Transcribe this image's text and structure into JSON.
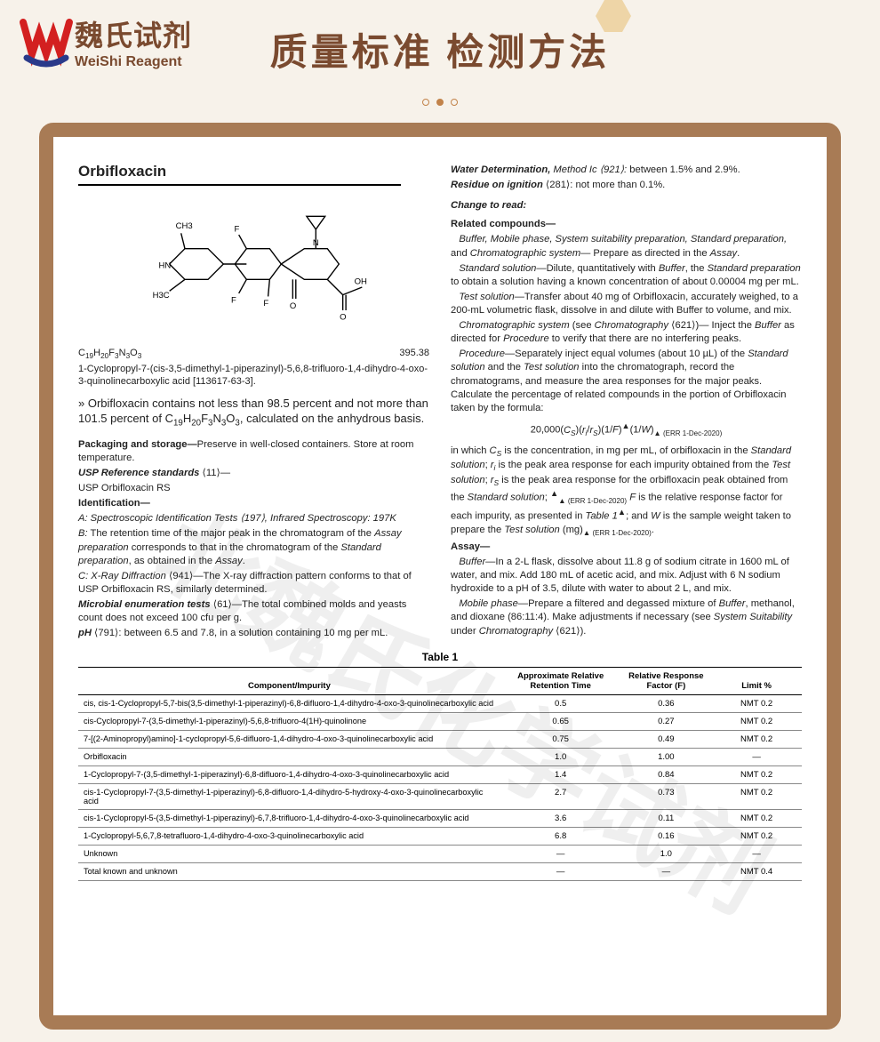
{
  "brand": {
    "cn": "魏氏试剂",
    "en": "WeiShi Reagent"
  },
  "page_title": "质量标准 检测方法",
  "watermark": "北魏氏化学试剂",
  "monograph": {
    "title": "Orbifloxacin",
    "formula": "20,000(Cs)(ri/rs)(1/F)▲(1/W)▲ (ERR 1-Dec-2020)",
    "mw": "395.38",
    "chem_name": "1-Cyclopropyl-7-(cis-3,5-dimethyl-1-piperazinyl)-5,6,8-trifluoro-1,4-dihydro-4-oxo-3-quinolinecarboxylic acid [113617-63-3].",
    "structure_labels": {
      "ch3_top": "CH3",
      "hn": "HN",
      "h3c": "H3C",
      "f1": "F",
      "f2": "F",
      "f3": "F",
      "n": "N",
      "o1": "O",
      "o2": "O",
      "oh": "OH"
    },
    "description": "» Orbifloxacin contains not less than 98.5 percent and not more than 101.5 percent of C19H20F3N3O3, calculated on the anhydrous basis.",
    "packaging_head": "Packaging and storage—",
    "packaging": "Preserve in well-closed containers. Store at room temperature.",
    "usp_ref_head": "USP Reference standards",
    "usp_ref_cross": "⟨11⟩—",
    "usp_ref_body": "USP Orbifloxacin RS",
    "identification_head": "Identification—",
    "id_A": "A:  Spectroscopic Identification Tests ⟨197⟩, Infrared Spectroscopy: 197K",
    "id_B": "B:  The retention time of the major peak in the chromatogram of the Assay preparation corresponds to that in the chromatogram of the Standard preparation, as obtained in the Assay.",
    "id_C": "C:  X-Ray Diffraction ⟨941⟩—The X-ray diffraction pattern conforms to that of USP Orbifloxacin RS, similarly determined.",
    "microbial_head": "Microbial enumeration tests",
    "microbial_cross": "⟨61⟩—",
    "microbial": "The total combined molds and yeasts count does not exceed 100 cfu per g.",
    "ph_head": "pH",
    "ph_cross": "⟨791⟩:",
    "ph": " between 6.5 and 7.8, in a solution containing 10 mg per mL.",
    "water_head": "Water Determination,",
    "water_method": " Method Ic ⟨921⟩:",
    "water": " between 1.5% and 2.9%.",
    "roi_head": "Residue on ignition",
    "roi_cross": " ⟨281⟩:",
    "roi": " not more than 0.1%.",
    "change": "Change to read:",
    "related_head": "Related compounds—",
    "rc_p1": "Buffer, Mobile phase, System suitability preparation, Standard preparation, and Chromatographic system— Prepare as directed in the Assay.",
    "rc_p2_head": "Standard solution—",
    "rc_p2": "Dilute, quantitatively with Buffer, the Standard preparation to obtain a solution having a known concentration of about 0.00004 mg per mL.",
    "rc_p3_head": "Test solution—",
    "rc_p3": "Transfer about 40 mg of Orbifloxacin, accurately weighed, to a 200-mL volumetric flask, dissolve in and dilute with Buffer to volume, and mix.",
    "rc_p4_head": "Chromatographic system",
    "rc_p4": " (see Chromatography ⟨621⟩)— Inject the Buffer as directed for Procedure to verify that there are no interfering peaks.",
    "rc_p5_head": "Procedure—",
    "rc_p5": "Separately inject equal volumes (about 10 µL) of the Standard solution and the Test solution into the chromatograph, record the chromatograms, and measure the area responses for the major peaks. Calculate the percentage of related compounds in the portion of Orbifloxacin taken by the formula:",
    "rc_p6": "in which Cs is the concentration, in mg per mL, of orbifloxacin in the Standard solution;  ri is the peak area response for each impurity obtained from the Test solution;  rs is the peak area response for the orbifloxacin peak obtained from the Standard solution; ▲▲ (ERR 1-Dec-2020) F is the relative response factor for each impurity, as presented in Table 1▲; and W is the sample weight taken to prepare the Test solution (mg)▲ (ERR 1-Dec-2020).",
    "assay_head": "Assay—",
    "assay_buffer_head": "Buffer—",
    "assay_buffer": "In a 2-L flask, dissolve about 11.8 g of sodium citrate in 1600 mL of water, and mix. Add 180 mL of acetic acid, and mix. Adjust with 6 N sodium hydroxide to a pH of 3.5, dilute with water to about 2 L, and mix.",
    "assay_mp_head": "Mobile phase—",
    "assay_mp": "Prepare a filtered and degassed mixture of Buffer, methanol, and dioxane (86:11:4). Make adjustments if necessary (see System Suitability under Chromatography ⟨621⟩)."
  },
  "table": {
    "caption": "Table 1",
    "headers": [
      "Component/Impurity",
      "Approximate Relative Retention Time",
      "Relative Response Factor (F)",
      "Limit %"
    ],
    "rows": [
      [
        "cis, cis-1-Cyclopropyl-5,7-bis(3,5-dimethyl-1-piperazinyl)-6,8-difluoro-1,4-dihydro-4-oxo-3-quinolinecarboxylic acid",
        "0.5",
        "0.36",
        "NMT 0.2"
      ],
      [
        "cis-Cyclopropyl-7-(3,5-dimethyl-1-piperazinyl)-5,6,8-trifluoro-4(1H)-quinolinone",
        "0.65",
        "0.27",
        "NMT 0.2"
      ],
      [
        "7-[(2-Aminopropyl)amino]-1-cyclopropyl-5,6-difluoro-1,4-dihydro-4-oxo-3-quinolinecarboxylic acid",
        "0.75",
        "0.49",
        "NMT 0.2"
      ],
      [
        "Orbifloxacin",
        "1.0",
        "1.00",
        "—"
      ],
      [
        "1-Cyclopropyl-7-(3,5-dimethyl-1-piperazinyl)-6,8-difluoro-1,4-dihydro-4-oxo-3-quinolinecarboxylic acid",
        "1.4",
        "0.84",
        "NMT 0.2"
      ],
      [
        "cis-1-Cyclopropyl-7-(3,5-dimethyl-1-piperazinyl)-6,8-difluoro-1,4-dihydro-5-hydroxy-4-oxo-3-quinolinecarboxylic acid",
        "2.7",
        "0.73",
        "NMT 0.2"
      ],
      [
        "cis-1-Cyclopropyl-5-(3,5-dimethyl-1-piperazinyl)-6,7,8-trifluoro-1,4-dihydro-4-oxo-3-quinolinecarboxylic acid",
        "3.6",
        "0.11",
        "NMT 0.2"
      ],
      [
        "1-Cyclopropyl-5,6,7,8-tetrafluoro-1,4-dihydro-4-oxo-3-quinolinecarboxylic acid",
        "6.8",
        "0.16",
        "NMT 0.2"
      ],
      [
        "Unknown",
        "—",
        "1.0",
        "—"
      ],
      [
        "Total known and unknown",
        "—",
        "—",
        "NMT 0.4"
      ]
    ]
  },
  "colors": {
    "frame": "#a87b55",
    "brand_text": "#7a4a2f",
    "logo_red": "#d32020",
    "logo_blue": "#2a3a8a",
    "page_bg": "#f7f2ea"
  }
}
